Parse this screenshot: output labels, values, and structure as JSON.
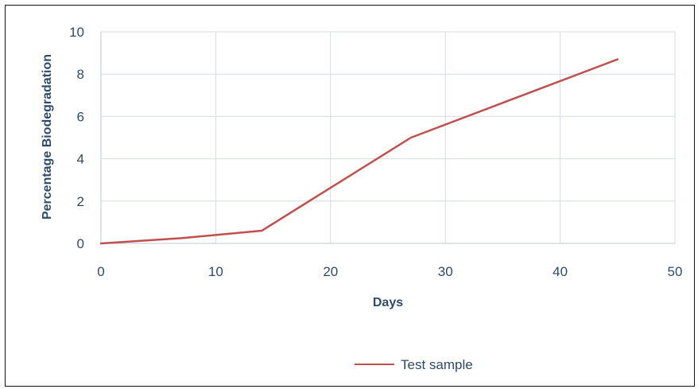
{
  "chart_data": {
    "type": "line",
    "xlabel": "Days",
    "ylabel": "Percentage Biodegradation",
    "xlim": [
      0,
      50
    ],
    "ylim": [
      0,
      10
    ],
    "x_ticks": [
      0,
      10,
      20,
      30,
      40,
      50
    ],
    "y_ticks": [
      0,
      2,
      4,
      6,
      8,
      10
    ],
    "grid": true,
    "legend_position": "bottom-center",
    "series": [
      {
        "name": "Test sample",
        "color": "#c0504d",
        "x": [
          0,
          7,
          14,
          27,
          45
        ],
        "y": [
          0,
          0.25,
          0.6,
          5,
          8.7
        ]
      }
    ]
  }
}
